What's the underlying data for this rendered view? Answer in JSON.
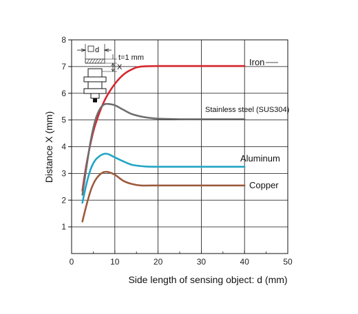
{
  "chart_data": {
    "type": "line",
    "xlabel": "Side length of sensing object: d (mm)",
    "ylabel": "Distance X (mm)",
    "xlim": [
      0,
      50
    ],
    "ylim": [
      0,
      8
    ],
    "xticks": [
      0,
      10,
      20,
      30,
      40,
      50
    ],
    "yticks": [
      1,
      2,
      3,
      4,
      5,
      6,
      7,
      8
    ],
    "grid": true,
    "legend": "inline labels at right end of each curve",
    "series": [
      {
        "name": "Iron",
        "color": "#d7262e",
        "x": [
          2.5,
          3.5,
          5,
          6.5,
          8,
          10,
          12,
          14,
          16,
          20,
          25,
          30,
          35,
          40
        ],
        "y": [
          2.35,
          3.4,
          4.55,
          5.3,
          5.85,
          6.35,
          6.7,
          6.9,
          7.0,
          7.02,
          7.02,
          7.02,
          7.02,
          7.02
        ]
      },
      {
        "name": "Stainless steel (SUS304)",
        "color": "#6e6e6e",
        "x": [
          2.5,
          3.5,
          4.5,
          5.5,
          6.5,
          7.5,
          8.5,
          10,
          12,
          14,
          17,
          20,
          25,
          30,
          35,
          40
        ],
        "y": [
          2.2,
          3.3,
          4.3,
          5.0,
          5.4,
          5.58,
          5.6,
          5.55,
          5.38,
          5.22,
          5.1,
          5.05,
          5.03,
          5.03,
          5.03,
          5.03
        ]
      },
      {
        "name": "Aluminum",
        "color": "#22a5c4",
        "x": [
          2.5,
          3.5,
          4.5,
          5.5,
          6.5,
          7.5,
          8.5,
          10,
          12,
          14,
          17,
          20,
          25,
          30,
          35,
          40
        ],
        "y": [
          1.9,
          2.65,
          3.2,
          3.5,
          3.65,
          3.73,
          3.72,
          3.6,
          3.45,
          3.32,
          3.26,
          3.25,
          3.25,
          3.25,
          3.25,
          3.25
        ]
      },
      {
        "name": "Copper",
        "color": "#9c5a3c",
        "x": [
          2.5,
          3.5,
          4.5,
          5.5,
          6.5,
          7.5,
          8.5,
          10,
          12,
          14,
          16,
          20,
          25,
          30,
          35,
          40
        ],
        "y": [
          1.2,
          1.85,
          2.4,
          2.75,
          2.95,
          3.05,
          3.05,
          2.95,
          2.72,
          2.6,
          2.55,
          2.55,
          2.55,
          2.55,
          2.55,
          2.55
        ]
      }
    ]
  },
  "inset": {
    "label_d": "d",
    "label_t": "t=1 mm",
    "label_x": "X"
  }
}
